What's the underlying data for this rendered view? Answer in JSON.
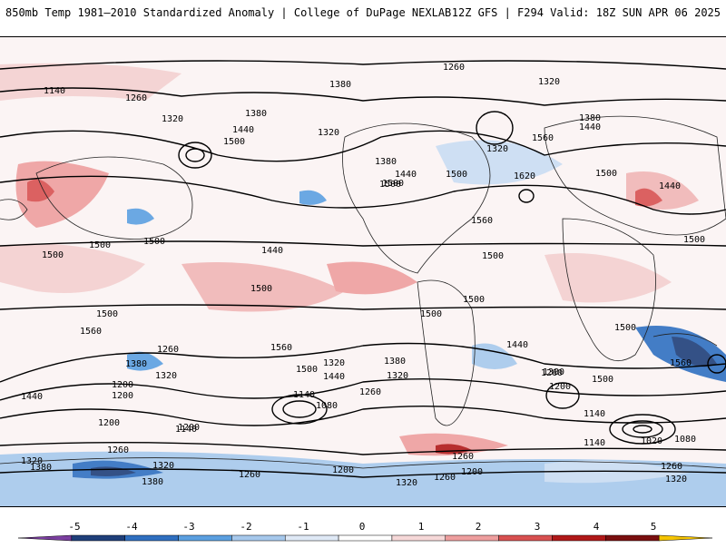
{
  "header": {
    "title": "850mb Temp 1981–2010 Standardized Anomaly | College of DuPage NEXLAB",
    "run_info": "12Z GFS | F294 Valid: 18Z SUN APR 06 2025"
  },
  "contour_labels": [
    "1140",
    "1260",
    "1320",
    "1380",
    "1440",
    "1500",
    "1560",
    "1620",
    "1200",
    "1080",
    "1020"
  ],
  "colorbar": {
    "ticks": [
      "-5",
      "-4",
      "-3",
      "-2",
      "-1",
      "0",
      "1",
      "2",
      "3",
      "4",
      "5"
    ],
    "colors": [
      "#7b3fa0",
      "#1f3f7a",
      "#2f6fc0",
      "#5b9fe0",
      "#a6c8ec",
      "#dfe9f6",
      "#ffffff",
      "#f6d8d8",
      "#ee9e9e",
      "#d85050",
      "#b01818",
      "#7a0f0f",
      "#f5c400"
    ]
  },
  "map_labels": [
    {
      "id": "l1",
      "text": "1140"
    },
    {
      "id": "l2",
      "text": "1260"
    },
    {
      "id": "l3",
      "text": "1380"
    },
    {
      "id": "l4",
      "text": "1320"
    },
    {
      "id": "l5",
      "text": "1260"
    },
    {
      "id": "l6",
      "text": "1320"
    },
    {
      "id": "l7",
      "text": "1440"
    },
    {
      "id": "l8",
      "text": "1500"
    },
    {
      "id": "l9",
      "text": "1380"
    },
    {
      "id": "l10",
      "text": "1320"
    },
    {
      "id": "l11",
      "text": "1380"
    },
    {
      "id": "l12",
      "text": "1440"
    },
    {
      "id": "l13",
      "text": "1500"
    },
    {
      "id": "l14",
      "text": "1560"
    },
    {
      "id": "l15",
      "text": "1620"
    },
    {
      "id": "l16",
      "text": "1560"
    },
    {
      "id": "l17",
      "text": "1320"
    },
    {
      "id": "l18",
      "text": "1440"
    },
    {
      "id": "l19",
      "text": "1380"
    },
    {
      "id": "l20",
      "text": "1500"
    },
    {
      "id": "l21",
      "text": "1440"
    },
    {
      "id": "l22",
      "text": "1500"
    },
    {
      "id": "l23",
      "text": "1500"
    },
    {
      "id": "l24",
      "text": "1500"
    },
    {
      "id": "l25",
      "text": "1500"
    },
    {
      "id": "l26",
      "text": "1560"
    },
    {
      "id": "l27",
      "text": "1500"
    },
    {
      "id": "l28",
      "text": "1560"
    },
    {
      "id": "l29",
      "text": "1500"
    },
    {
      "id": "l30",
      "text": "1440"
    },
    {
      "id": "l31",
      "text": "1380"
    },
    {
      "id": "l32",
      "text": "1320"
    },
    {
      "id": "l33",
      "text": "1260"
    },
    {
      "id": "l34",
      "text": "1200"
    },
    {
      "id": "l35",
      "text": "1440"
    },
    {
      "id": "l36",
      "text": "1380"
    },
    {
      "id": "l37",
      "text": "1320"
    },
    {
      "id": "l38",
      "text": "1200"
    },
    {
      "id": "l39",
      "text": "1260"
    },
    {
      "id": "l40",
      "text": "1320"
    },
    {
      "id": "l41",
      "text": "1440"
    },
    {
      "id": "l42",
      "text": "1500"
    },
    {
      "id": "l43",
      "text": "1140"
    },
    {
      "id": "l44",
      "text": "1080"
    },
    {
      "id": "l45",
      "text": "1260"
    },
    {
      "id": "l46",
      "text": "1380"
    },
    {
      "id": "l47",
      "text": "1200"
    },
    {
      "id": "l48",
      "text": "1140"
    },
    {
      "id": "l49",
      "text": "1500"
    },
    {
      "id": "l50",
      "text": "1140"
    },
    {
      "id": "l51",
      "text": "1020"
    },
    {
      "id": "l52",
      "text": "1080"
    },
    {
      "id": "l53",
      "text": "1260"
    },
    {
      "id": "l54",
      "text": "1320"
    },
    {
      "id": "l55",
      "text": "1200"
    },
    {
      "id": "l56",
      "text": "1260"
    },
    {
      "id": "l57",
      "text": "1320"
    },
    {
      "id": "l58",
      "text": "1380"
    },
    {
      "id": "l59",
      "text": "1320"
    },
    {
      "id": "l60",
      "text": "1380"
    },
    {
      "id": "l61",
      "text": "1260"
    },
    {
      "id": "l62",
      "text": "1200"
    },
    {
      "id": "l63",
      "text": "1320"
    },
    {
      "id": "l64",
      "text": "1260"
    },
    {
      "id": "l65",
      "text": "1200"
    },
    {
      "id": "l66",
      "text": "1140"
    },
    {
      "id": "l67",
      "text": "1200"
    },
    {
      "id": "l68",
      "text": "1260"
    },
    {
      "id": "l69",
      "text": "1500"
    },
    {
      "id": "l70",
      "text": "1500"
    },
    {
      "id": "l71",
      "text": "1560"
    },
    {
      "id": "l72",
      "text": "1500"
    },
    {
      "id": "l73",
      "text": "1500"
    },
    {
      "id": "l74",
      "text": "1500"
    },
    {
      "id": "l75",
      "text": "1440"
    },
    {
      "id": "l76",
      "text": "1500"
    }
  ]
}
